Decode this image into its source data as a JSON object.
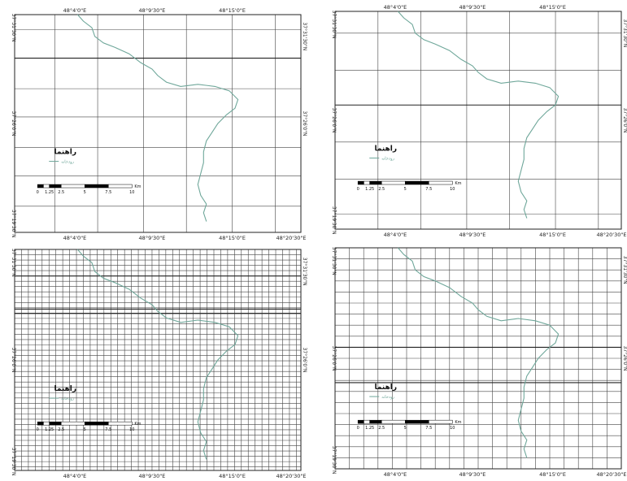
{
  "panels": [
    {
      "top_labels": [
        "48°4'0\"E",
        "48°9'30\"E",
        "48°15'0\"E"
      ],
      "bottom_labels": [
        "48°4'0\"E",
        "48°9'30\"E",
        "48°15'0\"E",
        "48°20'30\"E"
      ],
      "left_labels": [
        "37°31'30\"N",
        "37°26'0\"N",
        "37°19'30\"N"
      ],
      "right_labels": [
        "37°31'30\"N",
        "37°26'0\"N"
      ],
      "legend": {
        "title": "راهنما",
        "item": "رودخانه"
      },
      "scale": {
        "ticks": [
          "0",
          "1.25",
          "2.5",
          "5",
          "7.5",
          "10"
        ],
        "unit": "Km"
      }
    },
    {
      "top_labels": [
        "48°4'0\"E",
        "48°9'30\"E",
        "48°15'0\"E"
      ],
      "bottom_labels": [
        "48°4'0\"E",
        "48°9'30\"E",
        "48°15'0\"E",
        "48°20'30\"E"
      ],
      "left_labels": [
        "37°31'30\"N",
        "37°26'0\"N",
        "37°19'30\"N"
      ],
      "right_labels": [
        "37°31'30\"N",
        "37°26'0\"N"
      ],
      "legend": {
        "title": "راهنما",
        "item": "رودخانه"
      },
      "scale": {
        "ticks": [
          "0",
          "1.25",
          "2.5",
          "5",
          "7.5",
          "10"
        ],
        "unit": "Km"
      }
    },
    {
      "top_labels": [],
      "bottom_labels": [
        "48°4'0\"E",
        "48°9'30\"E",
        "48°15'0\"E",
        "48°20'30\"E"
      ],
      "left_labels": [
        "37°31'30\"N",
        "37°26'0\"N",
        "37°19'30\"N"
      ],
      "right_labels": [
        "37°31'30\"N",
        "37°26'0\"N"
      ],
      "legend": {
        "title": "راهنما",
        "item": "رودخانه"
      },
      "scale": {
        "ticks": [
          "0",
          "1.25",
          "2.5",
          "5",
          "7.5",
          "10"
        ],
        "unit": "Km"
      }
    },
    {
      "top_labels": [],
      "bottom_labels": [
        "48°4'0\"E",
        "48°9'30\"E",
        "48°15'0\"E",
        "48°20'30\"E"
      ],
      "left_labels": [
        "37°31'30\"N",
        "37°26'0\"N",
        "37°19'30\"N"
      ],
      "right_labels": [
        "37°31'30\"N",
        "37°26'0\"N"
      ],
      "legend": {
        "title": "راهنما",
        "item": "رودخانه"
      },
      "scale": {
        "ticks": [
          "0",
          "1.25",
          "2.5",
          "5",
          "7.5",
          "10"
        ],
        "unit": "Km"
      }
    }
  ],
  "colors": {
    "river": "#6fa79a",
    "grid": "#444444",
    "frame": "#222222",
    "scalebar": "#000000"
  }
}
